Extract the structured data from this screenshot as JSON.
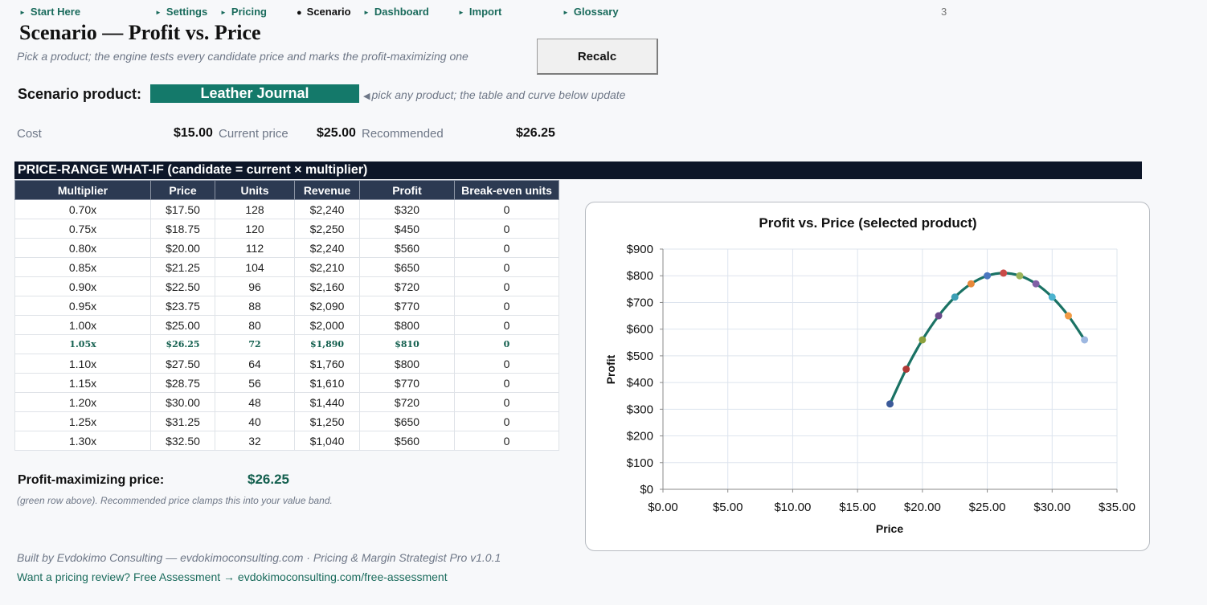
{
  "nav": {
    "items": [
      {
        "label": "Start Here"
      },
      {
        "label": "Settings"
      },
      {
        "label": "Pricing"
      },
      {
        "label": "Scenario",
        "current": true
      },
      {
        "label": "Dashboard"
      },
      {
        "label": "Import"
      },
      {
        "label": "Glossary"
      }
    ],
    "page_number": "3"
  },
  "header": {
    "title": "Scenario — Profit vs. Price",
    "subtitle": "Pick a product; the engine tests every candidate price and marks the profit-maximizing one",
    "recalc_label": "Recalc"
  },
  "scenario": {
    "label": "Scenario product:",
    "product": "Leather Journal",
    "hint": "pick any product; the table and curve below update"
  },
  "summary": {
    "cost_label": "Cost",
    "cost_value": "$15.00",
    "current_label": "Current price",
    "current_value": "$25.00",
    "recommended_label": "Recommended",
    "recommended_value": "$26.25"
  },
  "whatif": {
    "heading": "PRICE-RANGE WHAT-IF  (candidate = current × multiplier)",
    "columns": [
      "Multiplier",
      "Price",
      "Units",
      "Revenue",
      "Profit",
      "Break-even units"
    ],
    "rows": [
      [
        "0.70x",
        "$17.50",
        "128",
        "$2,240",
        "$320",
        "0"
      ],
      [
        "0.75x",
        "$18.75",
        "120",
        "$2,250",
        "$450",
        "0"
      ],
      [
        "0.80x",
        "$20.00",
        "112",
        "$2,240",
        "$560",
        "0"
      ],
      [
        "0.85x",
        "$21.25",
        "104",
        "$2,210",
        "$650",
        "0"
      ],
      [
        "0.90x",
        "$22.50",
        "96",
        "$2,160",
        "$720",
        "0"
      ],
      [
        "0.95x",
        "$23.75",
        "88",
        "$2,090",
        "$770",
        "0"
      ],
      [
        "1.00x",
        "$25.00",
        "80",
        "$2,000",
        "$800",
        "0"
      ],
      [
        "1.05x",
        "$26.25",
        "72",
        "$1,890",
        "$810",
        "0"
      ],
      [
        "1.10x",
        "$27.50",
        "64",
        "$1,760",
        "$800",
        "0"
      ],
      [
        "1.15x",
        "$28.75",
        "56",
        "$1,610",
        "$770",
        "0"
      ],
      [
        "1.20x",
        "$30.00",
        "48",
        "$1,440",
        "$720",
        "0"
      ],
      [
        "1.25x",
        "$31.25",
        "40",
        "$1,250",
        "$650",
        "0"
      ],
      [
        "1.30x",
        "$32.50",
        "32",
        "$1,040",
        "$560",
        "0"
      ]
    ],
    "best_row_index": 7
  },
  "profit_max": {
    "label": "Profit-maximizing price:",
    "value": "$26.25",
    "note": "(green row above). Recommended price clamps this into your value band."
  },
  "footer": {
    "credit": "Built by Evdokimo Consulting — evdokimoconsulting.com · Pricing & Margin Strategist Pro v1.0.1",
    "cta": "Want a pricing review? Free Assessment → evdokimoconsulting.com/free-assessment"
  },
  "chart_data": {
    "type": "scatter",
    "title": "Profit vs. Price (selected product)",
    "xlabel": "Price",
    "ylabel": "Profit",
    "xlim": [
      0,
      35
    ],
    "ylim": [
      0,
      900
    ],
    "x_ticks": [
      "$0.00",
      "$5.00",
      "$10.00",
      "$15.00",
      "$20.00",
      "$25.00",
      "$30.00",
      "$35.00"
    ],
    "y_ticks": [
      "$0",
      "$100",
      "$200",
      "$300",
      "$400",
      "$500",
      "$600",
      "$700",
      "$800",
      "$900"
    ],
    "grid": true,
    "smooth_line": true,
    "line_color": "#1a7264",
    "x": [
      17.5,
      18.75,
      20.0,
      21.25,
      22.5,
      23.75,
      25.0,
      26.25,
      27.5,
      28.75,
      30.0,
      31.25,
      32.5
    ],
    "y": [
      320,
      450,
      560,
      650,
      720,
      770,
      800,
      810,
      800,
      770,
      720,
      650,
      560
    ],
    "point_colors": [
      "#3b5a9a",
      "#b03a36",
      "#8da13c",
      "#6b4a8c",
      "#3c9fb5",
      "#e8883a",
      "#4a77c0",
      "#c94a47",
      "#9cb45a",
      "#8160a6",
      "#4cb3cf",
      "#f29a44",
      "#9db7e0"
    ]
  }
}
